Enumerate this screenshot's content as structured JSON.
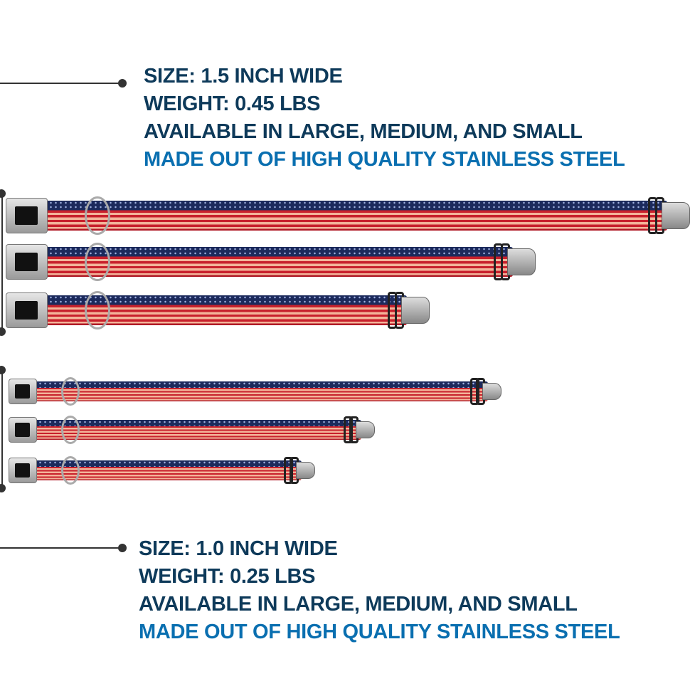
{
  "wide": {
    "size": "SIZE: 1.5 INCH WIDE",
    "weight": "WEIGHT: 0.45 LBS",
    "available": "AVAILABLE IN LARGE, MEDIUM, AND SMALL",
    "material": "MADE OUT OF HIGH QUALITY STAINLESS STEEL"
  },
  "narrow": {
    "size": "SIZE: 1.0 INCH WIDE",
    "weight": "WEIGHT: 0.25 LBS",
    "available": "AVAILABLE IN LARGE, MEDIUM, AND SMALL",
    "material": "MADE OUT OF HIGH QUALITY STAINLESS STEEL"
  },
  "colors": {
    "text": "#0e3a5a",
    "highlight": "#0a6fb0",
    "navy": "#1c2a5c",
    "red": "#c8202c"
  }
}
